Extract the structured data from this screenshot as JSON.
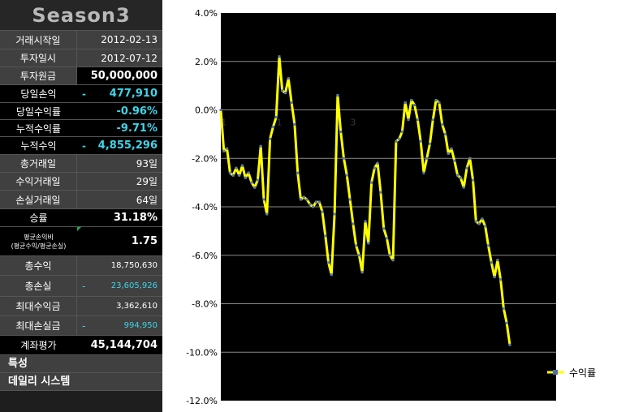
{
  "panel": {
    "title": "Season3",
    "rows": [
      {
        "label": "거래시작일",
        "value": "2012-02-13"
      },
      {
        "label": "투자일시",
        "value": "2012-07-12"
      },
      {
        "label": "투자원금",
        "value": "50,000,000"
      },
      {
        "label": "당일손익",
        "dash": "-",
        "value": "477,910"
      },
      {
        "label": "당일수익률",
        "value": "-0.96%"
      },
      {
        "label": "누적수익률",
        "value": "-9.71%"
      },
      {
        "label": "누적수익",
        "dash": "-",
        "value": "4,855,296"
      },
      {
        "label": "총거래일",
        "value": "93일"
      },
      {
        "label": "수익거래일",
        "value": "29일"
      },
      {
        "label": "손실거래일",
        "value": "64일"
      },
      {
        "label": "승률",
        "value": "31.18%"
      },
      {
        "label_line1": "평균손익비",
        "label_line2": "(평균수익/평균손실)",
        "value": "1.75"
      },
      {
        "label": "총수익",
        "value": "18,750,630"
      },
      {
        "label": "총손실",
        "dash": "-",
        "value": "23,605,926"
      },
      {
        "label": "최대수익금",
        "value": "3,362,610"
      },
      {
        "label": "최대손실금",
        "dash": "-",
        "value": "994,950"
      },
      {
        "label": "계좌평가",
        "value": "45,144,704"
      }
    ],
    "footer1": "특성",
    "footer2": "데일리 시스템"
  },
  "chart_data": {
    "type": "line",
    "title": "",
    "xlabel": "",
    "ylabel": "",
    "ylim": [
      -12,
      4
    ],
    "yticks": [
      "4.0%",
      "2.0%",
      "0.0%",
      "-2.0%",
      "-4.0%",
      "-6.0%",
      "-8.0%",
      "-10.0%",
      "-12.0%"
    ],
    "ytick_values": [
      4,
      2,
      0,
      -2,
      -4,
      -6,
      -8,
      -10,
      -12
    ],
    "xtick_labels": [
      {
        "index": 1,
        "label": "1"
      },
      {
        "index": 19,
        "label": "1"
      },
      {
        "index": 43,
        "label": "3"
      }
    ],
    "series": [
      {
        "name": "수익률",
        "color": "#ffff00",
        "values": [
          0.0,
          -1.7,
          -1.6,
          -2.6,
          -2.7,
          -2.4,
          -2.7,
          -2.3,
          -2.8,
          -2.6,
          -3.0,
          -3.2,
          -2.9,
          -1.5,
          -3.7,
          -4.3,
          -1.2,
          -0.7,
          -0.3,
          2.2,
          0.8,
          0.7,
          1.3,
          0.3,
          -0.6,
          -2.6,
          -3.7,
          -3.6,
          -3.7,
          -3.9,
          -4.0,
          -3.8,
          -3.8,
          -4.2,
          -5.2,
          -6.3,
          -6.8,
          -4.3,
          0.6,
          -0.9,
          -2.0,
          -2.7,
          -3.7,
          -4.7,
          -5.6,
          -6.0,
          -6.7,
          -4.6,
          -5.5,
          -3.0,
          -2.4,
          -2.2,
          -3.4,
          -4.9,
          -5.3,
          -6.0,
          -6.2,
          -1.3,
          -1.2,
          -0.9,
          0.3,
          -0.4,
          0.4,
          0.2,
          -0.4,
          -1.3,
          -2.6,
          -2.0,
          -1.4,
          -0.4,
          0.4,
          0.3,
          -0.6,
          -1.0,
          -1.8,
          -1.6,
          -2.1,
          -2.7,
          -2.8,
          -3.2,
          -2.4,
          -2.0,
          -2.9,
          -4.6,
          -4.7,
          -4.5,
          -4.8,
          -5.6,
          -6.3,
          -6.9,
          -6.2,
          -7.0,
          -8.2,
          -8.8,
          -9.7
        ]
      }
    ],
    "legend": "right"
  }
}
